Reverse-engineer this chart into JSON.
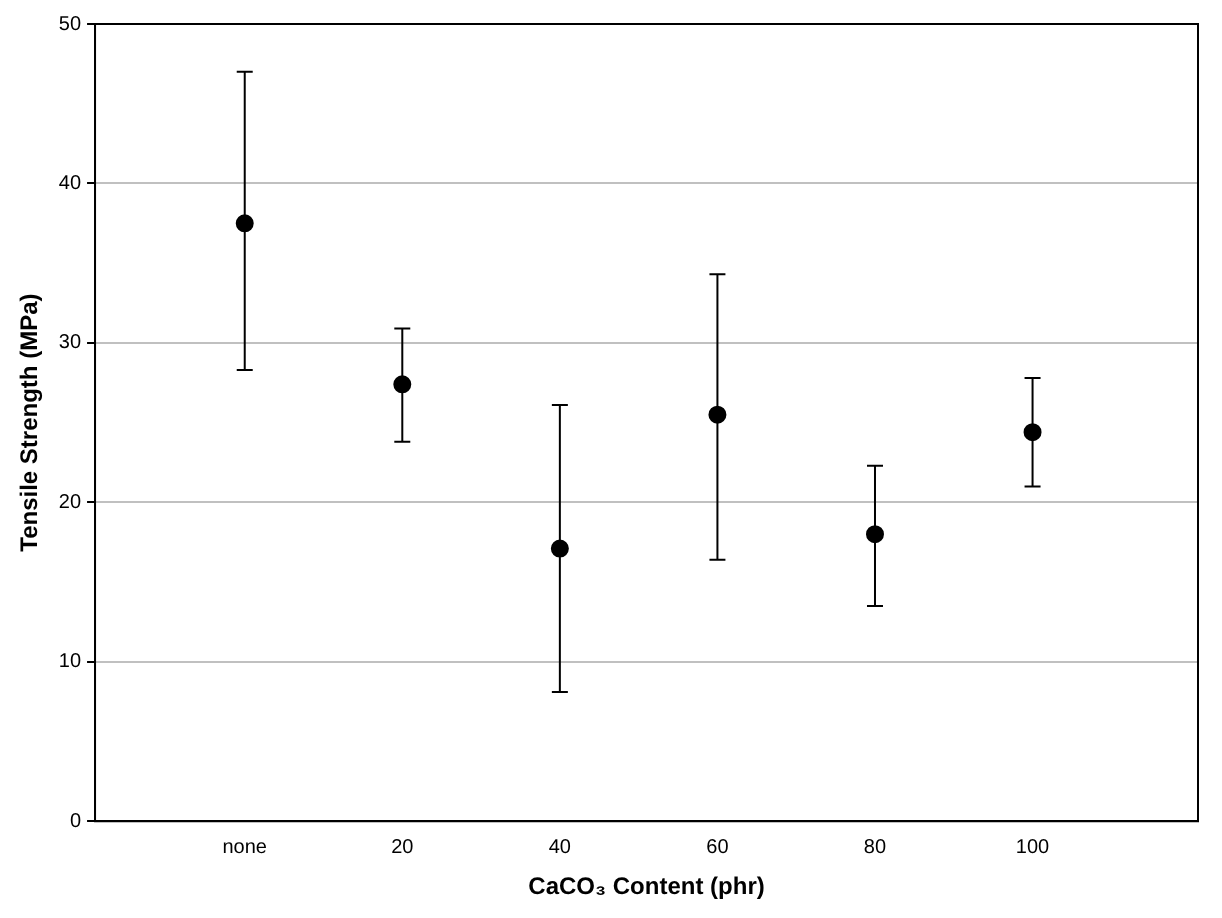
{
  "chart_data": {
    "type": "scatter",
    "xlabel": "CaCO₃ Content (phr)",
    "ylabel": "Tensile Strength (MPa)",
    "categories": [
      "none",
      "20",
      "40",
      "60",
      "80",
      "100"
    ],
    "values": [
      37.5,
      27.4,
      17.1,
      25.5,
      18.0,
      24.4
    ],
    "errors": [
      [
        28.3,
        47.0
      ],
      [
        23.8,
        30.9
      ],
      [
        8.1,
        26.1
      ],
      [
        16.4,
        34.3
      ],
      [
        13.5,
        22.3
      ],
      [
        21.0,
        27.8
      ]
    ],
    "color": "#000000",
    "marker": "circle",
    "ylim": [
      0,
      50
    ],
    "yticks": [
      0,
      10,
      20,
      30,
      40,
      50
    ],
    "grid": "y",
    "legend": false
  }
}
